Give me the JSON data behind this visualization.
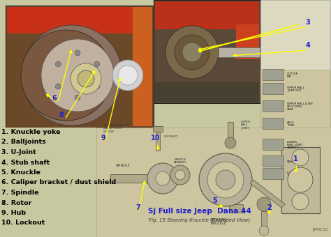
{
  "background_color": "#c8c8a0",
  "list_items": [
    "1. Knuckle yoke",
    "2. Balljoints",
    "3. U-Joint",
    "4. Stub shaft",
    "5. Knuckle",
    "6. Caliper bracket / dust shield",
    "7. Spindle",
    "8. Rotor",
    "9. Hub",
    "10. Lockout"
  ],
  "list_fontsize": 6.8,
  "list_color": "#000000",
  "list_fontweight": "bold",
  "diagram_title": "Sj Full size Jeep  Dana 44",
  "diagram_subtitle": "Fig. 15 Steering Knuckle (Exploded View)",
  "diagram_title_color": "#1a1acc",
  "diagram_title_fontsize": 7.5,
  "diagram_subtitle_fontsize": 5.0,
  "diagram_subtitle_color": "#333333",
  "arrow_color": "#ffff00",
  "number_color": "#2020cc",
  "label_color": "#333333",
  "photo1_bg": "#7a5030",
  "photo1_rotor": "#b0a090",
  "photo1_hub": "#d0c0a0",
  "photo1_red": "#cc3020",
  "photo2_bg": "#5a4535",
  "photo2_red": "#bb3020",
  "parts_bg": "#cdc5a0",
  "diagram_bg": "#ccc5a0",
  "white_bg": "#e8e4d0"
}
